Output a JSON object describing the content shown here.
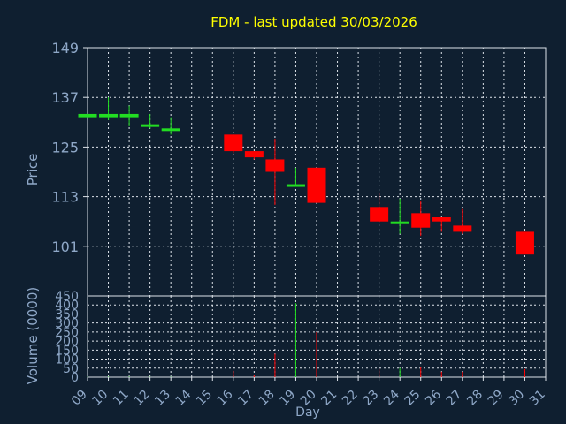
{
  "colors": {
    "background": "#0f1f30",
    "title": "#ffff00",
    "axis_text": "#8fa8c8",
    "grid": "#dde3ea",
    "up": "#22dd22",
    "down": "#ff0000"
  },
  "chart_data": [
    {
      "type": "candlestick",
      "title": "FDM - last updated 30/03/2026",
      "ylabel": "Price",
      "ylim": [
        89,
        149
      ],
      "yticks": [
        149,
        137,
        125,
        113,
        101
      ],
      "grid": true,
      "candles": [
        {
          "day": 9,
          "open": 132.0,
          "close": 133.0,
          "high": 133.0,
          "low": 132.0
        },
        {
          "day": 10,
          "open": 132.0,
          "close": 133.0,
          "high": 137.0,
          "low": 131.5
        },
        {
          "day": 11,
          "open": 132.0,
          "close": 133.0,
          "high": 135.0,
          "low": 130.0
        },
        {
          "day": 12,
          "open": 130.0,
          "close": 130.5,
          "high": 133.0,
          "low": 129.5
        },
        {
          "day": 13,
          "open": 129.0,
          "close": 129.5,
          "high": 132.0,
          "low": 128.0
        },
        {
          "day": 16,
          "open": 128.0,
          "close": 124.0,
          "high": 128.0,
          "low": 123.5
        },
        {
          "day": 17,
          "open": 124.0,
          "close": 122.5,
          "high": 124.0,
          "low": 122.0
        },
        {
          "day": 18,
          "open": 122.0,
          "close": 119.0,
          "high": 127.0,
          "low": 111.0
        },
        {
          "day": 19,
          "open": 115.5,
          "close": 116.0,
          "high": 120.0,
          "low": 115.5
        },
        {
          "day": 20,
          "open": 120.0,
          "close": 111.5,
          "high": 120.0,
          "low": 111.5
        },
        {
          "day": 23,
          "open": 110.5,
          "close": 107.0,
          "high": 114.0,
          "low": 106.5
        },
        {
          "day": 24,
          "open": 106.5,
          "close": 107.0,
          "high": 112.5,
          "low": 104.0
        },
        {
          "day": 25,
          "open": 109.0,
          "close": 105.5,
          "high": 112.0,
          "low": 103.5
        },
        {
          "day": 26,
          "open": 108.0,
          "close": 107.0,
          "high": 108.0,
          "low": 104.5
        },
        {
          "day": 27,
          "open": 106.0,
          "close": 104.5,
          "high": 110.0,
          "low": 104.0
        },
        {
          "day": 30,
          "open": 104.5,
          "close": 99.0,
          "high": 104.5,
          "low": 99.0
        }
      ]
    },
    {
      "type": "bar",
      "ylabel": "Volume (0000)",
      "xlabel": "Day",
      "ylim": [
        0,
        450
      ],
      "yticks": [
        450,
        400,
        350,
        300,
        250,
        200,
        150,
        100,
        50,
        0
      ],
      "xlim": [
        9,
        31
      ],
      "xticks": [
        "09",
        "10",
        "11",
        "12",
        "13",
        "14",
        "15",
        "16",
        "17",
        "18",
        "19",
        "20",
        "21",
        "22",
        "23",
        "24",
        "25",
        "26",
        "27",
        "28",
        "29",
        "30",
        "31"
      ],
      "grid": true,
      "bars": [
        {
          "day": 9,
          "value": 2,
          "dir": "up"
        },
        {
          "day": 10,
          "value": 3,
          "dir": "up"
        },
        {
          "day": 11,
          "value": 3,
          "dir": "up"
        },
        {
          "day": 12,
          "value": 2,
          "dir": "up"
        },
        {
          "day": 13,
          "value": 2,
          "dir": "up"
        },
        {
          "day": 16,
          "value": 35,
          "dir": "down"
        },
        {
          "day": 17,
          "value": 12,
          "dir": "down"
        },
        {
          "day": 18,
          "value": 130,
          "dir": "down"
        },
        {
          "day": 19,
          "value": 410,
          "dir": "up"
        },
        {
          "day": 20,
          "value": 250,
          "dir": "down"
        },
        {
          "day": 23,
          "value": 45,
          "dir": "down"
        },
        {
          "day": 24,
          "value": 50,
          "dir": "up"
        },
        {
          "day": 25,
          "value": 55,
          "dir": "down"
        },
        {
          "day": 26,
          "value": 30,
          "dir": "down"
        },
        {
          "day": 27,
          "value": 30,
          "dir": "down"
        },
        {
          "day": 30,
          "value": 45,
          "dir": "down"
        }
      ]
    }
  ]
}
